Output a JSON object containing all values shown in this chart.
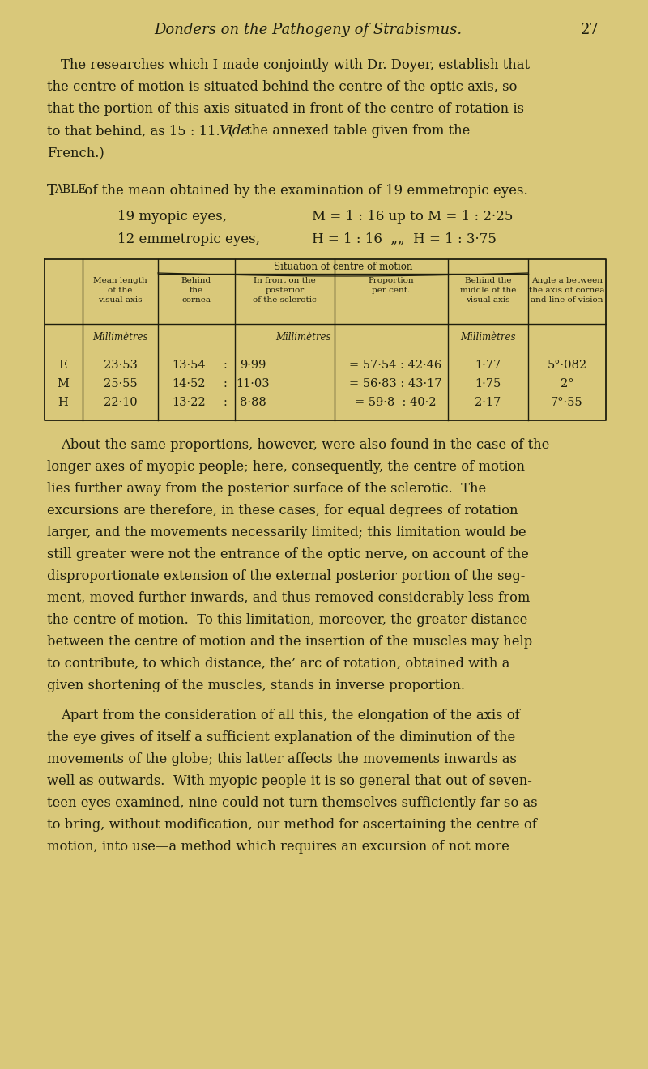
{
  "bg_color": "#d9c87a",
  "text_color": "#1e1e0e",
  "header_title": "Donders on the Pathogeny of Strabismus.",
  "page_number": "27",
  "para1_lines": [
    [
      "The researches which I made conjointly with Dr. Doyer, establish that",
      false
    ],
    [
      "the centre of motion is situated behind the centre of the optic axis, so",
      false
    ],
    [
      "that the portion of this axis situated in front of the centre of rotation is",
      false
    ],
    [
      "to that behind, as 15 : 11.  (",
      false
    ],
    [
      "French.)",
      false
    ]
  ],
  "table_caption_prefix": "Table",
  "table_caption_rest": " of the mean obtained by the examination of 19 emmetropic eyes.",
  "myopic_label": "19 myopic eyes,",
  "myopic_value": "M = 1 : 16 up to M = 1 : 2·25",
  "emmet_label": "12 emmetropic eyes,",
  "emmet_value": "H = 1 : 16  „„  H = 1 : 3·75",
  "sit_header": "Situation of centre of motion",
  "col_header1": "Mean length\nof the\nvisual axis",
  "col_header2": "Behind\nthe\ncornea",
  "col_header3": "In front on the\nposterior\nof the sclerotic",
  "col_header4": "Proportion\nper cent.",
  "col_header5": "Behind the\nmiddle of the\nvisual axis",
  "col_header6": "Angle a between\nthe axis of cornea\nand line of vision",
  "unit1": "Millimètres",
  "unit2": "Millimètres",
  "unit3": "Millimètres",
  "data_rows": [
    [
      "E",
      "23·53",
      "13·54",
      "9·99",
      "= 57·54 : 42·46",
      "1·77",
      "5°·082"
    ],
    [
      "M",
      "25·55",
      "14·52",
      "11·03",
      "= 56·83 : 43·17",
      "1·75",
      "2°"
    ],
    [
      "H",
      "22·10",
      "13·22",
      "8·88",
      "= 59·8  : 40·2",
      "2·17",
      "7°·55"
    ]
  ],
  "para2_lines": [
    "About the same proportions, however, were also found in the case of the",
    "longer axes of myopic people; here, consequently, the centre of motion",
    "lies further away from the posterior surface of the sclerotic.  The",
    "excursions are therefore, in these cases, for equal degrees of rotation",
    "larger, and the movements necessarily limited; this limitation would be",
    "still greater were not the entrance of the optic nerve, on account of the",
    "disproportionate extension of the external posterior portion of the seg-",
    "ment, moved further inwards, and thus removed considerably less from",
    "the centre of motion.  To this limitation, moreover, the greater distance",
    "between the centre of motion and the insertion of the muscles may help",
    "to contribute, to which distance, the’ arc of rotation, obtained with a",
    "given shortening of the muscles, stands in inverse proportion."
  ],
  "para3_lines": [
    "Apart from the consideration of all this, the elongation of the axis of",
    "the eye gives of itself a sufficient explanation of the diminution of the",
    "movements of the globe; this latter affects the movements inwards as",
    "well as outwards.  With myopic people it is so general that out of seven-",
    "teen eyes examined, nine could not turn themselves sufficiently far so as",
    "to bring, without modification, our method for ascertaining the centre of",
    "motion, into use—a method which requires an excursion of not more"
  ]
}
